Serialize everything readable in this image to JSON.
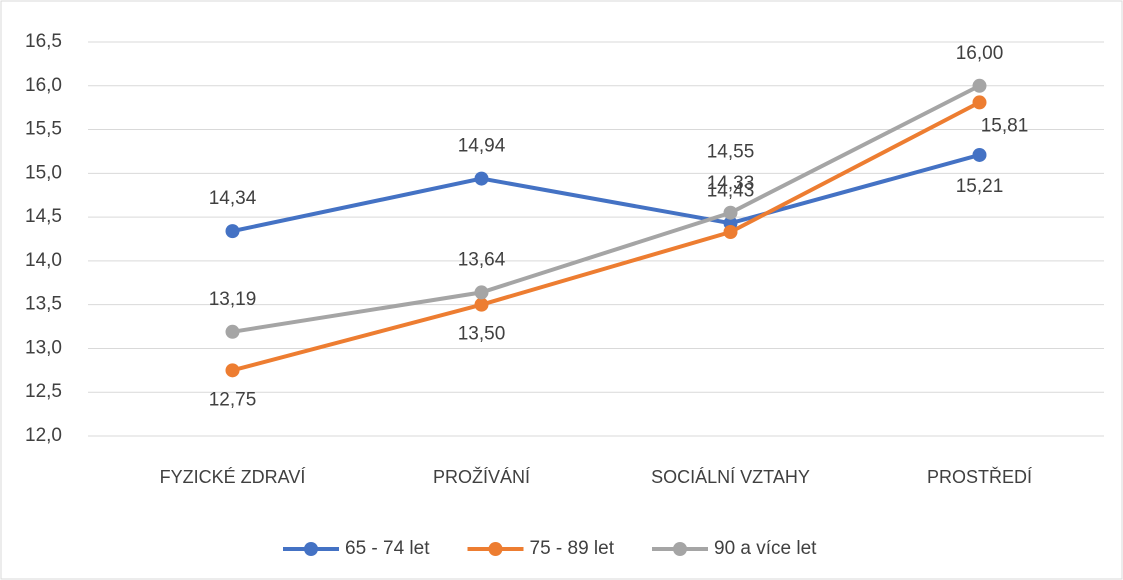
{
  "chart_data": {
    "type": "line",
    "categories": [
      "FYZICKÉ ZDRAVÍ",
      "PROŽÍVÁNÍ",
      "SOCIÁLNÍ VZTAHY",
      "PROSTŘEDÍ"
    ],
    "series": [
      {
        "name": "65 - 74 let",
        "color": "#4472c4",
        "values": [
          14.34,
          14.94,
          14.43,
          15.21
        ],
        "value_labels": [
          "14,34",
          "14,94",
          "14,43",
          "15,21"
        ]
      },
      {
        "name": "75 - 89 let",
        "color": "#ed7d31",
        "values": [
          12.75,
          13.5,
          14.33,
          15.81
        ],
        "value_labels": [
          "12,75",
          "13,50",
          "14,33",
          "15,81"
        ]
      },
      {
        "name": "90 a více let",
        "color": "#a5a5a5",
        "values": [
          13.19,
          13.64,
          14.55,
          16.0
        ],
        "value_labels": [
          "13,19",
          "13,64",
          "14,55",
          "16,00"
        ]
      }
    ],
    "ylim": [
      12.0,
      16.5
    ],
    "yticks": [
      {
        "value": 12.0,
        "label": "12,0"
      },
      {
        "value": 12.5,
        "label": "12,5"
      },
      {
        "value": 13.0,
        "label": "13,0"
      },
      {
        "value": 13.5,
        "label": "13,5"
      },
      {
        "value": 14.0,
        "label": "14,0"
      },
      {
        "value": 14.5,
        "label": "14,5"
      },
      {
        "value": 15.0,
        "label": "15,0"
      },
      {
        "value": 15.5,
        "label": "15,5"
      },
      {
        "value": 16.0,
        "label": "16,0"
      },
      {
        "value": 16.5,
        "label": "16,5"
      }
    ],
    "grid": true,
    "legend": "bottom"
  }
}
